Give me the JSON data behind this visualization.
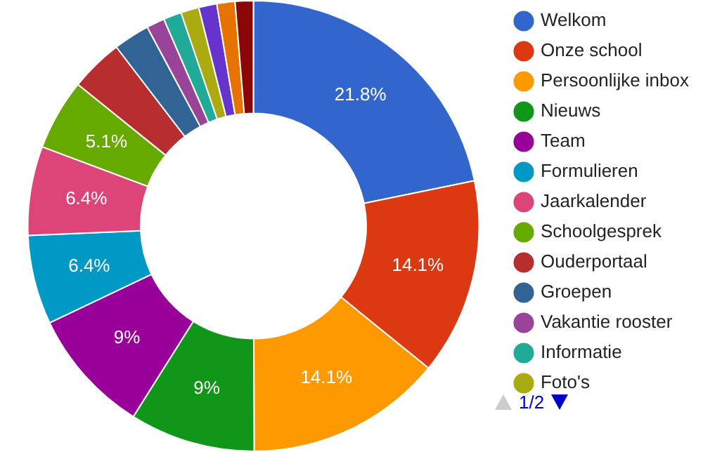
{
  "chart_data": {
    "type": "donut",
    "categories": [
      "Welkom",
      "Onze school",
      "Persoonlijke inbox",
      "Nieuws",
      "Team",
      "Formulieren",
      "Jaarkalender",
      "Schoolgesprek",
      "Ouderportaal",
      "Groepen",
      "Vakantie rooster",
      "Informatie",
      "Foto's",
      null,
      null,
      null
    ],
    "values": [
      21.8,
      14.1,
      14.1,
      9,
      9,
      6.4,
      6.4,
      5.1,
      3.8,
      2.6,
      1.3,
      1.3,
      1.3,
      1.3,
      1.3,
      1.3
    ],
    "colors": [
      "#3366cc",
      "#dc3912",
      "#ff9900",
      "#109618",
      "#990099",
      "#0099c6",
      "#dd4477",
      "#66aa00",
      "#b82e2e",
      "#316395",
      "#994499",
      "#22aa99",
      "#aaaa11",
      "#6633cc",
      "#e67300",
      "#8b0707"
    ],
    "value_labels": [
      "21.8%",
      "14.1%",
      "14.1%",
      "9%",
      "9%",
      "6.4%",
      "6.4%",
      "5.1%",
      null,
      null,
      null,
      null,
      null,
      null,
      null,
      null
    ],
    "legend": "right",
    "annotations": [
      "1/2"
    ]
  }
}
